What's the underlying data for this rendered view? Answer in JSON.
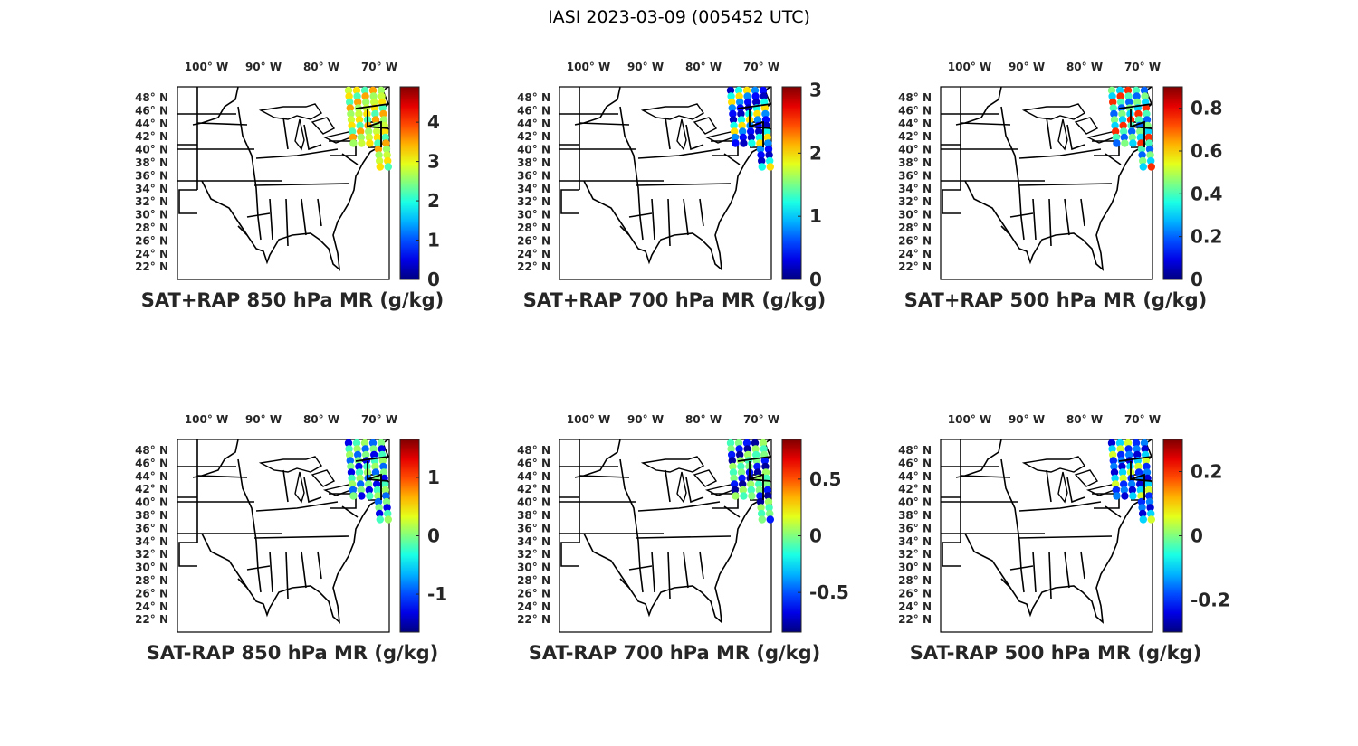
{
  "figure": {
    "title": "IASI 2023-03-09 (005452 UTC)",
    "lon_ticks": [
      "100° W",
      "90° W",
      "80° W",
      "70° W"
    ],
    "lat_ticks": [
      "48° N",
      "46° N",
      "44° N",
      "42° N",
      "40° N",
      "38° N",
      "36° N",
      "34° N",
      "32° N",
      "30° N",
      "28° N",
      "26° N",
      "24° N",
      "22° N"
    ],
    "colormap": "jet"
  },
  "panels": [
    {
      "title": "SAT+RAP 850 hPa MR (g/kg)",
      "cb_min": 0,
      "cb_max": 4.9,
      "ticks": [
        0,
        1,
        2,
        3,
        4
      ],
      "tick_labels": [
        "0",
        "1",
        "2",
        "3",
        "4"
      ],
      "swath_values": [
        2.8,
        3.2,
        2.2,
        3.5,
        2.6
      ]
    },
    {
      "title": "SAT+RAP 700 hPa MR (g/kg)",
      "cb_min": 0,
      "cb_max": 3.05,
      "ticks": [
        0,
        1,
        2,
        3
      ],
      "tick_labels": [
        "0",
        "1",
        "2",
        "3"
      ],
      "swath_values": [
        0.2,
        1.2,
        2.0,
        0.8,
        0.4
      ]
    },
    {
      "title": "SAT+RAP 500 hPa MR (g/kg)",
      "cb_min": 0,
      "cb_max": 0.9,
      "ticks": [
        0,
        0.2,
        0.4,
        0.6,
        0.8
      ],
      "tick_labels": [
        "0",
        "0.2",
        "0.4",
        "0.6",
        "0.8"
      ],
      "swath_values": [
        0.45,
        0.3,
        0.75,
        0.4,
        0.2
      ]
    },
    {
      "title": "SAT-RAP 850 hPa MR (g/kg)",
      "cb_min": -1.65,
      "cb_max": 1.65,
      "ticks": [
        -1,
        0,
        1
      ],
      "tick_labels": [
        "-1",
        "0",
        "1"
      ],
      "swath_values": [
        -1.3,
        -0.2,
        0.1,
        -0.9,
        0.0
      ]
    },
    {
      "title": "SAT-RAP 700 hPa MR (g/kg)",
      "cb_min": -0.85,
      "cb_max": 0.85,
      "ticks": [
        -0.5,
        0,
        0.5
      ],
      "tick_labels": [
        "-0.5",
        "0",
        "0.5"
      ],
      "swath_values": [
        -0.1,
        0.0,
        -0.6,
        -0.8,
        0.05
      ]
    },
    {
      "title": "SAT-RAP 500 hPa MR (g/kg)",
      "cb_min": -0.3,
      "cb_max": 0.3,
      "ticks": [
        -0.2,
        0,
        0.2
      ],
      "tick_labels": [
        "-0.2",
        "0",
        "0.2"
      ],
      "swath_values": [
        -0.25,
        -0.1,
        0.05,
        -0.2,
        -0.15
      ]
    }
  ]
}
